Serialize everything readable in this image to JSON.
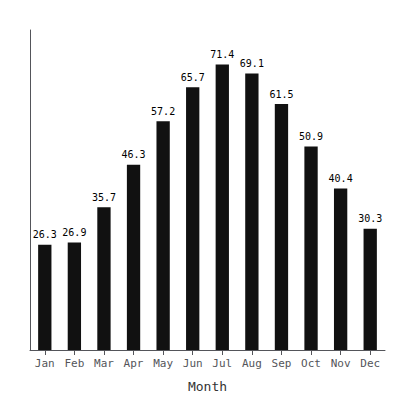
{
  "chart_data": {
    "type": "bar",
    "xlabel": "Month",
    "categories": [
      "Jan",
      "Feb",
      "Mar",
      "Apr",
      "May",
      "Jun",
      "Jul",
      "Aug",
      "Sep",
      "Oct",
      "Nov",
      "Dec"
    ],
    "values": [
      26.3,
      26.9,
      35.7,
      46.3,
      57.2,
      65.7,
      71.4,
      69.1,
      61.5,
      50.9,
      40.4,
      30.3
    ],
    "color": "#111111",
    "ylim": [
      0,
      80
    ],
    "grid": false,
    "data_labels": true,
    "tick_labels": "x"
  }
}
